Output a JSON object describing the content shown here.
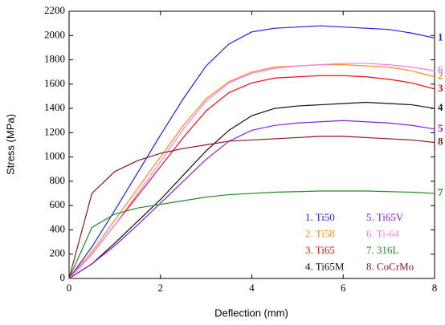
{
  "chart_data": {
    "type": "line",
    "xlabel": "Deflection (mm)",
    "ylabel": "Stress (MPa)",
    "x": [
      0,
      0.5,
      1,
      1.5,
      2,
      2.5,
      3,
      3.5,
      4,
      4.5,
      5,
      5.5,
      6,
      6.5,
      7,
      7.5,
      8
    ],
    "xlim": [
      0,
      8
    ],
    "xticks": [
      0,
      2,
      4,
      6,
      8
    ],
    "ylim": [
      0,
      2200
    ],
    "yticks": [
      0,
      200,
      400,
      600,
      800,
      1000,
      1200,
      1400,
      1600,
      1800,
      2000,
      2200
    ],
    "series": [
      {
        "name": "1. Ti50",
        "end_label": "1",
        "color": "#1f1fe8",
        "values": [
          0,
          260,
          560,
          870,
          1180,
          1480,
          1750,
          1930,
          2030,
          2060,
          2070,
          2080,
          2070,
          2060,
          2050,
          2020,
          1980
        ]
      },
      {
        "name": "2. Ti58",
        "end_label": "2",
        "color": "#ff8c1a",
        "values": [
          0,
          220,
          480,
          740,
          1000,
          1260,
          1480,
          1620,
          1700,
          1740,
          1750,
          1760,
          1760,
          1750,
          1740,
          1710,
          1660
        ]
      },
      {
        "name": "3. Ti65",
        "end_label": "3",
        "color": "#e81010",
        "values": [
          0,
          200,
          440,
          680,
          920,
          1160,
          1380,
          1530,
          1610,
          1650,
          1660,
          1670,
          1670,
          1660,
          1640,
          1610,
          1560
        ]
      },
      {
        "name": "4. Ti65M",
        "end_label": "4",
        "color": "#111111",
        "values": [
          0,
          120,
          290,
          470,
          650,
          850,
          1050,
          1220,
          1340,
          1400,
          1420,
          1430,
          1440,
          1450,
          1440,
          1430,
          1400
        ]
      },
      {
        "name": "5. Ti65V",
        "end_label": "5",
        "color": "#8a1ee0",
        "values": [
          0,
          120,
          270,
          440,
          620,
          800,
          980,
          1130,
          1220,
          1260,
          1280,
          1290,
          1300,
          1290,
          1280,
          1260,
          1230
        ]
      },
      {
        "name": "6. Ti-64",
        "end_label": "6",
        "color": "#f27ef2",
        "values": [
          0,
          200,
          440,
          700,
          960,
          1230,
          1460,
          1610,
          1690,
          1730,
          1750,
          1760,
          1770,
          1770,
          1760,
          1740,
          1710
        ]
      },
      {
        "name": "7. 316L",
        "end_label": "7",
        "color": "#1e8a1e",
        "values": [
          0,
          420,
          530,
          580,
          610,
          640,
          670,
          690,
          700,
          710,
          715,
          720,
          720,
          720,
          715,
          710,
          700
        ]
      },
      {
        "name": "8. CoCrMo",
        "end_label": "8",
        "color": "#8b1a1a",
        "values": [
          0,
          700,
          880,
          970,
          1030,
          1070,
          1100,
          1130,
          1140,
          1150,
          1160,
          1170,
          1170,
          1160,
          1150,
          1140,
          1120
        ]
      }
    ]
  }
}
